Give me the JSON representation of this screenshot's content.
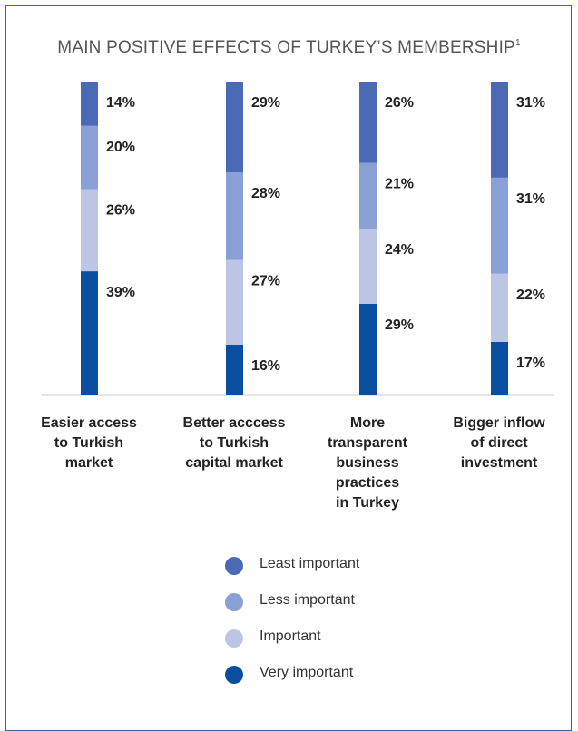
{
  "chart_data": {
    "type": "bar",
    "stacked": true,
    "stack_mode": "percent",
    "title": "MAIN POSITIVE EFFECTS OF TURKEY’S MEMBERSHIP",
    "title_superscript": "1",
    "categories": [
      "Easier access\nto Turkish\nmarket",
      "Better acccess\nto Turkish\ncapital market",
      "More\ntransparent\nbusiness\npractices\nin Turkey",
      "Bigger inflow\nof direct\ninvestment"
    ],
    "series": [
      {
        "name": "Very important",
        "color": "#0a4f9f",
        "values": [
          39,
          16,
          29,
          17
        ],
        "labels": [
          "39%",
          "16%",
          "29%",
          "17%"
        ]
      },
      {
        "name": "Important",
        "color": "#bcc6e4",
        "values": [
          26,
          27,
          24,
          22
        ],
        "labels": [
          "26%",
          "27%",
          "24%",
          "22%"
        ]
      },
      {
        "name": "Less important",
        "color": "#8a9fd3",
        "values": [
          20,
          28,
          21,
          31
        ],
        "labels": [
          "20%",
          "28%",
          "21%",
          "31%"
        ]
      },
      {
        "name": "Least important",
        "color": "#4a6ab8",
        "values": [
          14,
          29,
          26,
          31
        ],
        "labels": [
          "14%",
          "29%",
          "26%",
          "31%"
        ]
      }
    ],
    "legend_order": [
      "Least important",
      "Less important",
      "Important",
      "Very important"
    ],
    "legend_placement": "bottom-center",
    "grid": false
  }
}
